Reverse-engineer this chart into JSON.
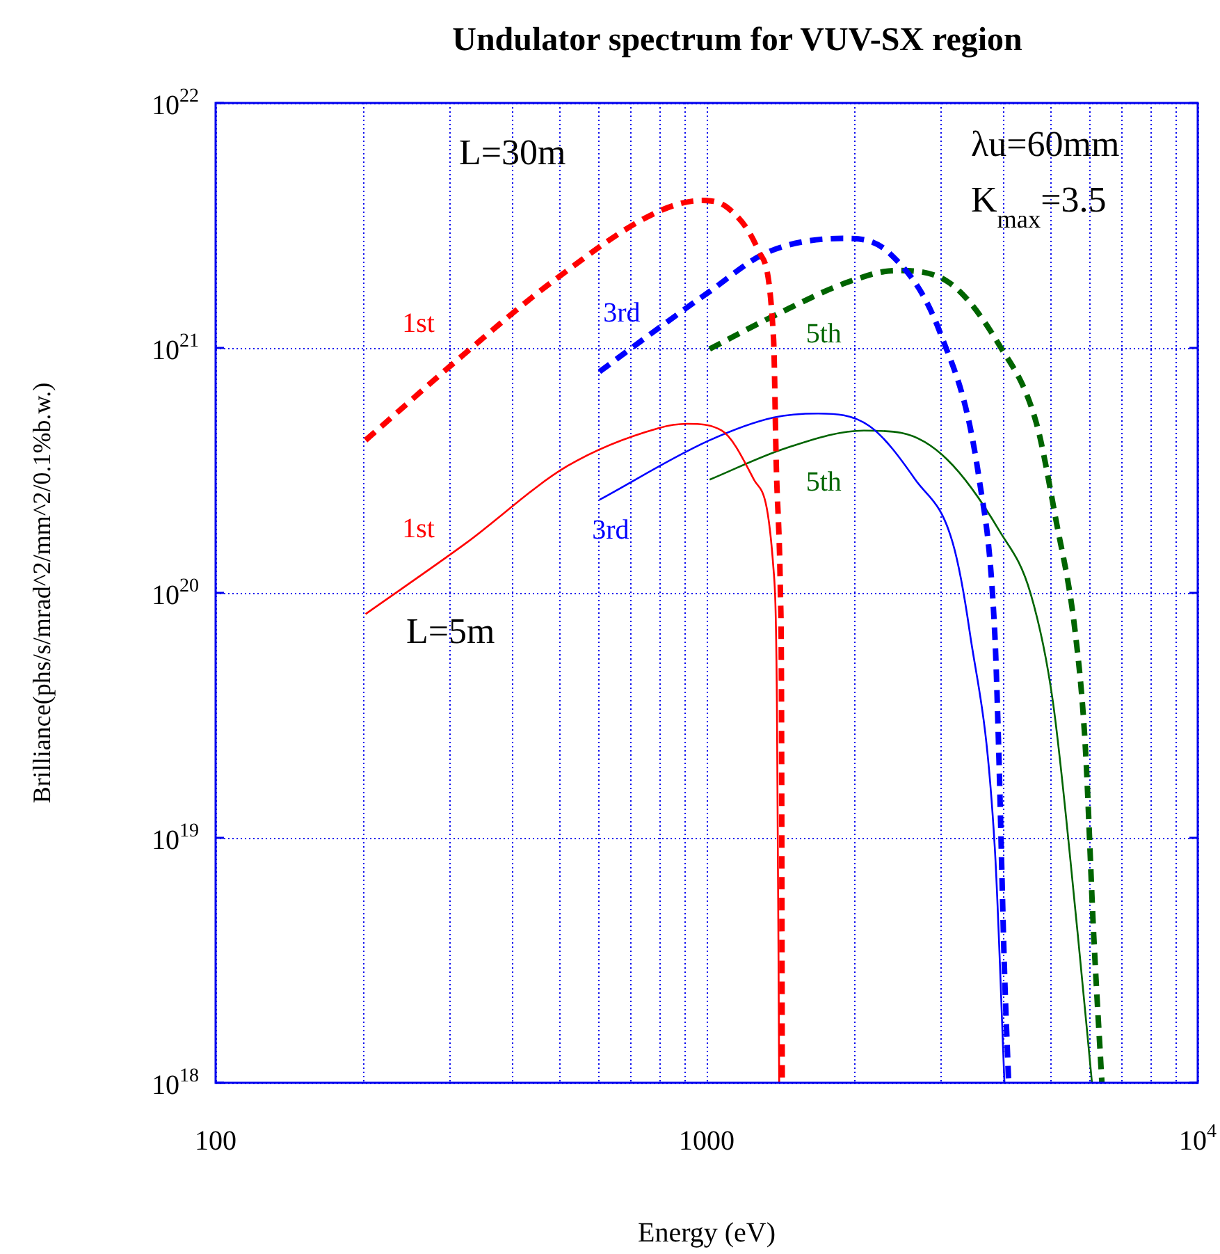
{
  "chart_data": {
    "type": "line",
    "title": "Undulator spectrum for VUV-SX region",
    "xlabel": "Energy (eV)",
    "ylabel": "Brilliance(phs/s/mrad^2/mm^2/0.1%b.w.)",
    "log": "xy",
    "grid": true,
    "legend": false,
    "marker": "none",
    "xlim": [
      100,
      10000
    ],
    "ylim": [
      1e+18,
      1e+22
    ],
    "xticks": [
      100,
      {
        "value": 200,
        "label": null
      },
      {
        "value": 300,
        "label": null
      },
      {
        "value": 400,
        "label": null
      },
      {
        "value": 500,
        "label": null
      },
      {
        "value": 600,
        "label": null
      },
      {
        "value": 700,
        "label": null
      },
      {
        "value": 800,
        "label": null
      },
      {
        "value": 900,
        "label": null
      },
      1000,
      {
        "value": 2000,
        "label": null
      },
      {
        "value": 3000,
        "label": null
      },
      {
        "value": 4000,
        "label": null
      },
      {
        "value": 5000,
        "label": null
      },
      {
        "value": 6000,
        "label": null
      },
      {
        "value": 7000,
        "label": null
      },
      {
        "value": 8000,
        "label": null
      },
      {
        "value": 9000,
        "label": null
      },
      {
        "value": 10000,
        "label": "10$^{4}$"
      }
    ],
    "yticks": [
      {
        "value": 1e+18,
        "label": "10$^{18}$"
      },
      {
        "value": 1e+19,
        "label": "10$^{19}$"
      },
      {
        "value": 1e+20,
        "label": "10$^{20}$"
      },
      {
        "value": 1e+21,
        "label": "10$^{21}$"
      },
      {
        "value": 1e+22,
        "label": "10$^{22}$"
      }
    ],
    "annotations": [
      "L=30m",
      "L=5m",
      "λu=60mm",
      "K$_{max}$=3.5"
    ],
    "series": [
      {
        "name": "1st",
        "color": "#ff0000",
        "line_style": "dashed",
        "x": [
          202,
          324,
          491,
          796,
          981,
          1110,
          1274,
          1368,
          1386,
          1413,
          1420,
          1425
        ],
        "values": [
          4.2e+20,
          9.6e+20,
          1.9e+21,
          3.6e+21,
          4e+21,
          3.7e+21,
          2.5e+21,
          1.1e+21,
          3.3e+20,
          9.9e+19,
          3.8e+19,
          1e+18
        ]
      },
      {
        "name": "3rd",
        "color": "#0000ff",
        "line_style": "dashed",
        "x": [
          605,
          796,
          1014,
          1325,
          1907,
          2350,
          2990,
          3590,
          3860,
          3930,
          4040,
          4120
        ],
        "values": [
          8e+20,
          1.2e+21,
          1.7e+21,
          2.45e+21,
          2.8e+21,
          2.45e+21,
          1.15e+21,
          2.9e+20,
          6.9e+19,
          2.4e+19,
          2.9e+18,
          1e+18
        ]
      },
      {
        "name": "5th",
        "color": "#006400",
        "line_style": "dashed",
        "x": [
          1014,
          1368,
          1958,
          2430,
          3090,
          3940,
          4690,
          5140,
          5630,
          5900,
          6140,
          6380
        ],
        "values": [
          9.9e+20,
          1.35e+21,
          1.87e+21,
          2.07e+21,
          1.87e+21,
          1.03e+21,
          4.95e+20,
          2e+20,
          6.9e+19,
          2.4e+19,
          4e+18,
          1e+18
        ]
      },
      {
        "name": "1st",
        "color": "#ff0000",
        "line_style": "solid",
        "x": [
          202,
          324,
          521,
          796,
          913,
          1073,
          1248,
          1368,
          1390,
          1405
        ],
        "values": [
          8.2e+19,
          1.6e+20,
          3.3e+20,
          4.7e+20,
          4.9e+20,
          4.6e+20,
          2.9e+20,
          1.25e+20,
          3.6e+19,
          1e+18
        ]
      },
      {
        "name": "3rd",
        "color": "#0000ff",
        "line_style": "solid",
        "x": [
          605,
          1014,
          1368,
          1686,
          2145,
          2660,
          3170,
          3430,
          3860,
          4040
        ],
        "values": [
          2.4e+20,
          4.2e+20,
          5.2e+20,
          5.4e+20,
          4.8e+20,
          2.9e+20,
          1.6e+20,
          7e+19,
          9.2e+18,
          1e+18
        ]
      },
      {
        "name": "5th",
        "color": "#006400",
        "line_style": "solid",
        "x": [
          1014,
          1450,
          2090,
          2490,
          3090,
          3940,
          4570,
          5070,
          5700,
          6090
        ],
        "values": [
          2.9e+20,
          3.9e+20,
          4.6e+20,
          4.5e+20,
          3.5e+20,
          1.8e+20,
          9.9e+19,
          3.6e+19,
          4e+18,
          1e+18
        ]
      }
    ]
  }
}
